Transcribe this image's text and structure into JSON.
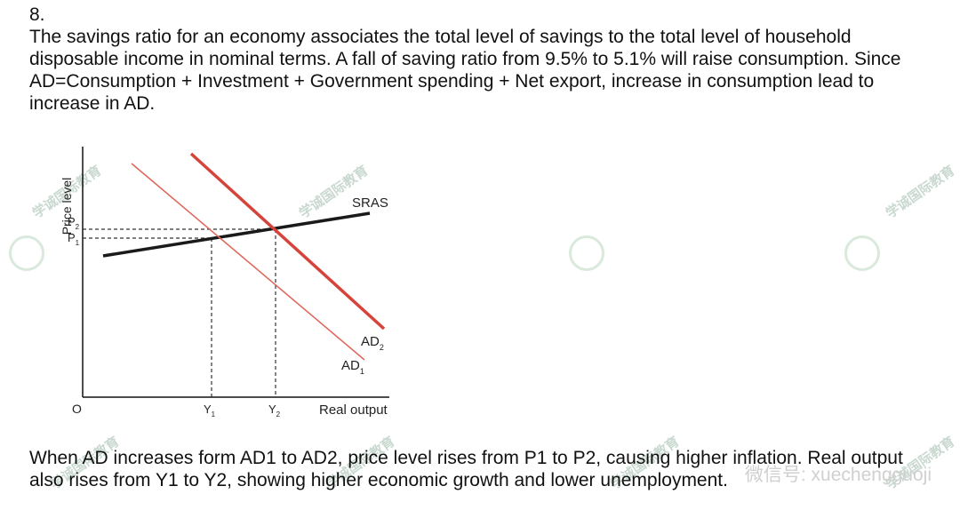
{
  "question": {
    "number": "8.",
    "text": "The savings ratio for an economy associates the total level of savings to the total level of household disposable income in nominal terms. A fall of saving ratio from 9.5% to 5.1% will raise consumption. Since AD=Consumption + Investment + Government spending + Net export, increase in consumption lead to increase in AD."
  },
  "answer": {
    "text": "When AD increases form AD1 to AD2, price level rises from P1 to P2, causing higher inflation. Real output also rises from Y1 to Y2, showing higher economic growth and lower unemployment."
  },
  "chart_data": {
    "type": "line",
    "ylabel": "Price level",
    "xlabel": "Real output",
    "origin_label": "O",
    "y_ticks": [
      {
        "label": "P",
        "sub": "2"
      },
      {
        "label": "P",
        "sub": "1"
      }
    ],
    "x_ticks": [
      {
        "label": "Y",
        "sub": "1"
      },
      {
        "label": "Y",
        "sub": "2"
      }
    ],
    "series": [
      {
        "name": "SRAS",
        "label": "SRAS",
        "sub": "",
        "color": "#1a1a1a"
      },
      {
        "name": "AD1",
        "label": "AD",
        "sub": "1",
        "color": "#e0645a"
      },
      {
        "name": "AD2",
        "label": "AD",
        "sub": "2",
        "color": "#d6433a"
      }
    ]
  },
  "watermark": {
    "text": "学诚国际教育",
    "wechat": "微信号: xuechengguoji"
  }
}
